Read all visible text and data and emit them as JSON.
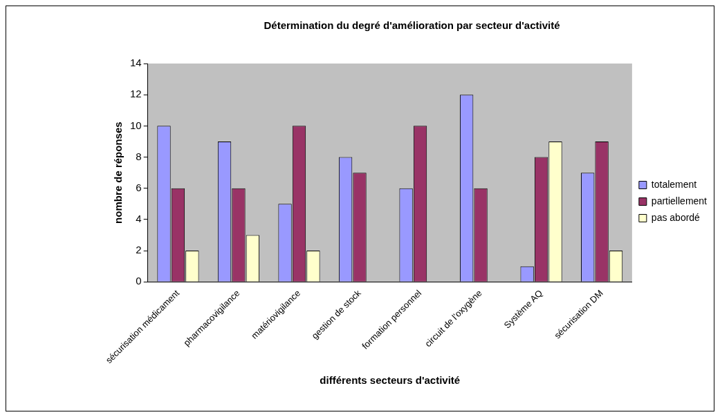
{
  "chart_data": {
    "type": "bar",
    "title": "Détermination du degré d'amélioration par secteur d'activité",
    "xlabel": "différents secteurs d'activité",
    "ylabel": "nombre de réponses",
    "categories": [
      "sécurisation médicament",
      "pharmacovigilance",
      "matériovigilance",
      "gestion de stock",
      "formation personnel",
      "circuit de l'oxygène",
      "Système AQ",
      "sécurisation DM"
    ],
    "series": [
      {
        "name": "totalement",
        "color": "#9999ff",
        "values": [
          10,
          9,
          5,
          8,
          6,
          12,
          1,
          7
        ]
      },
      {
        "name": "partiellement",
        "color": "#993366",
        "values": [
          6,
          6,
          10,
          7,
          10,
          6,
          8,
          9
        ]
      },
      {
        "name": "pas abordé",
        "color": "#ffffcc",
        "values": [
          2,
          3,
          2,
          null,
          null,
          null,
          9,
          2
        ]
      }
    ],
    "ylim": [
      0,
      14
    ],
    "yticks": [
      0,
      2,
      4,
      6,
      8,
      10,
      12,
      14
    ],
    "grid": false,
    "legend": "right"
  }
}
